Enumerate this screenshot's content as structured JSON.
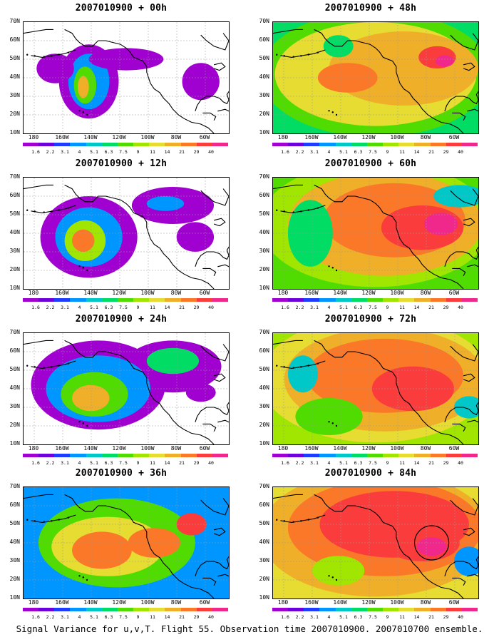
{
  "figure": {
    "caption": "Signal Variance for u,v,T. Flight 55. Observation time 2007010900. 2007010700 ensemble."
  },
  "panels": [
    {
      "title": "2007010900 + 00h",
      "level": 0
    },
    {
      "title": "2007010900 + 48h",
      "level": 4
    },
    {
      "title": "2007010900 + 12h",
      "level": 1
    },
    {
      "title": "2007010900 + 60h",
      "level": 5
    },
    {
      "title": "2007010900 + 24h",
      "level": 2
    },
    {
      "title": "2007010900 + 72h",
      "level": 6
    },
    {
      "title": "2007010900 + 36h",
      "level": 3
    },
    {
      "title": "2007010900 + 84h",
      "level": 7,
      "circle": true
    }
  ],
  "lat_labels": [
    "70N",
    "60N",
    "50N",
    "40N",
    "30N",
    "20N",
    "10N"
  ],
  "lon_labels": [
    "180",
    "160W",
    "140W",
    "120W",
    "100W",
    "80W",
    "60W"
  ],
  "colorbar": {
    "labels": [
      "1.6",
      "2.2",
      "3.1",
      "4",
      "5.1",
      "6.3",
      "7.5",
      "9",
      "11",
      "14",
      "21",
      "29",
      "40"
    ],
    "colors": [
      "#a000d0",
      "#6e00dc",
      "#1e3cff",
      "#0096ff",
      "#00c8c8",
      "#00dc64",
      "#50dc00",
      "#a0e600",
      "#e6dc32",
      "#f0af28",
      "#fa7828",
      "#fa3c3c",
      "#f0288c"
    ]
  }
}
